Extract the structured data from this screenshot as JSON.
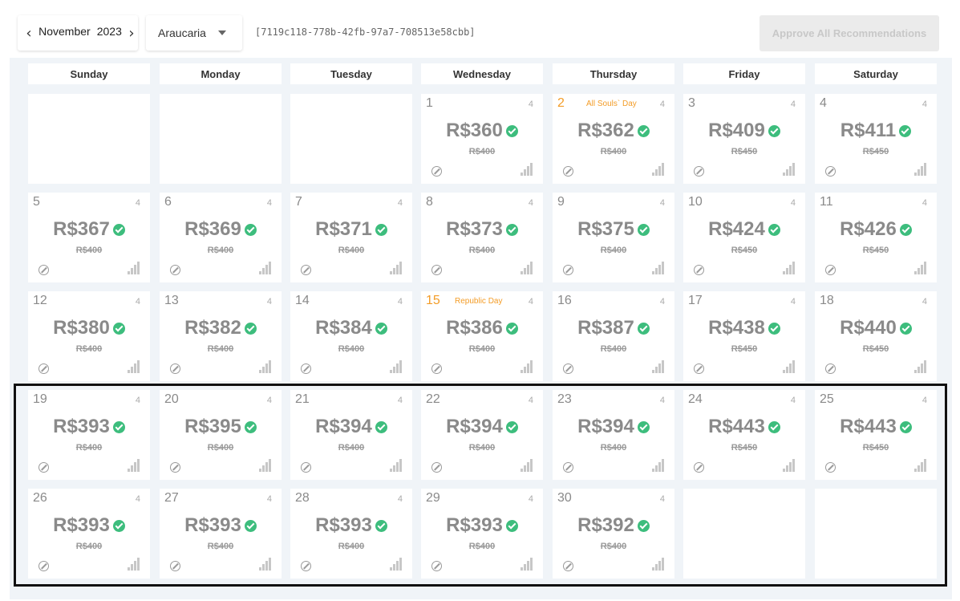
{
  "toolbar": {
    "month": "November",
    "year": "2023",
    "prev_icon": "chevron-left-icon",
    "next_icon": "chevron-right-icon",
    "property": "Araucaria",
    "property_icon": "caret-down-icon",
    "uuid": "[7119c118-778b-42fb-97a7-708513e58cbb]",
    "approve_label": "Approve All Recommendations"
  },
  "weekdays": [
    "Sunday",
    "Monday",
    "Tuesday",
    "Wednesday",
    "Thursday",
    "Friday",
    "Saturday"
  ],
  "colors": {
    "check": "#3dbd7d",
    "holiday": "#f39c27",
    "price": "#8a8a8a"
  },
  "days": [
    {
      "date": "1",
      "count": "4",
      "price": "R$360",
      "old": "R$400",
      "holiday": ""
    },
    {
      "date": "2",
      "count": "4",
      "price": "R$362",
      "old": "R$400",
      "holiday": "All Souls` Day"
    },
    {
      "date": "3",
      "count": "4",
      "price": "R$409",
      "old": "R$450",
      "holiday": ""
    },
    {
      "date": "4",
      "count": "4",
      "price": "R$411",
      "old": "R$450",
      "holiday": ""
    },
    {
      "date": "5",
      "count": "4",
      "price": "R$367",
      "old": "R$400",
      "holiday": ""
    },
    {
      "date": "6",
      "count": "4",
      "price": "R$369",
      "old": "R$400",
      "holiday": ""
    },
    {
      "date": "7",
      "count": "4",
      "price": "R$371",
      "old": "R$400",
      "holiday": ""
    },
    {
      "date": "8",
      "count": "4",
      "price": "R$373",
      "old": "R$400",
      "holiday": ""
    },
    {
      "date": "9",
      "count": "4",
      "price": "R$375",
      "old": "R$400",
      "holiday": ""
    },
    {
      "date": "10",
      "count": "4",
      "price": "R$424",
      "old": "R$450",
      "holiday": ""
    },
    {
      "date": "11",
      "count": "4",
      "price": "R$426",
      "old": "R$450",
      "holiday": ""
    },
    {
      "date": "12",
      "count": "4",
      "price": "R$380",
      "old": "R$400",
      "holiday": ""
    },
    {
      "date": "13",
      "count": "4",
      "price": "R$382",
      "old": "R$400",
      "holiday": ""
    },
    {
      "date": "14",
      "count": "4",
      "price": "R$384",
      "old": "R$400",
      "holiday": ""
    },
    {
      "date": "15",
      "count": "4",
      "price": "R$386",
      "old": "R$400",
      "holiday": "Republic Day"
    },
    {
      "date": "16",
      "count": "4",
      "price": "R$387",
      "old": "R$400",
      "holiday": ""
    },
    {
      "date": "17",
      "count": "4",
      "price": "R$438",
      "old": "R$450",
      "holiday": ""
    },
    {
      "date": "18",
      "count": "4",
      "price": "R$440",
      "old": "R$450",
      "holiday": ""
    },
    {
      "date": "19",
      "count": "4",
      "price": "R$393",
      "old": "R$400",
      "holiday": ""
    },
    {
      "date": "20",
      "count": "4",
      "price": "R$395",
      "old": "R$400",
      "holiday": ""
    },
    {
      "date": "21",
      "count": "4",
      "price": "R$394",
      "old": "R$400",
      "holiday": ""
    },
    {
      "date": "22",
      "count": "4",
      "price": "R$394",
      "old": "R$400",
      "holiday": ""
    },
    {
      "date": "23",
      "count": "4",
      "price": "R$394",
      "old": "R$400",
      "holiday": ""
    },
    {
      "date": "24",
      "count": "4",
      "price": "R$443",
      "old": "R$450",
      "holiday": ""
    },
    {
      "date": "25",
      "count": "4",
      "price": "R$443",
      "old": "R$450",
      "holiday": ""
    },
    {
      "date": "26",
      "count": "4",
      "price": "R$393",
      "old": "R$400",
      "holiday": ""
    },
    {
      "date": "27",
      "count": "4",
      "price": "R$393",
      "old": "R$400",
      "holiday": ""
    },
    {
      "date": "28",
      "count": "4",
      "price": "R$393",
      "old": "R$400",
      "holiday": ""
    },
    {
      "date": "29",
      "count": "4",
      "price": "R$393",
      "old": "R$400",
      "holiday": ""
    },
    {
      "date": "30",
      "count": "4",
      "price": "R$392",
      "old": "R$400",
      "holiday": ""
    }
  ]
}
